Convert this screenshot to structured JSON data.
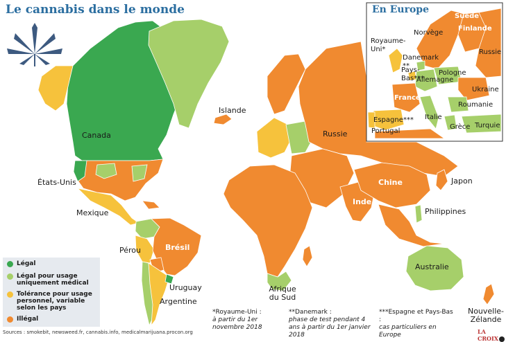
{
  "title": "Le cannabis dans le monde",
  "colors": {
    "legal": "#3aa850",
    "medical": "#a6cf6a",
    "tolerance": "#f6c23c",
    "illegal": "#f08a30",
    "water": "#ffffff"
  },
  "countries": {
    "canada": "Canada",
    "usa": "États-Unis",
    "mexique": "Mexique",
    "perou": "Pérou",
    "bresil": "Brésil",
    "uruguay": "Uruguay",
    "argentine": "Argentine",
    "islande": "Islande",
    "russie": "Russie",
    "chine": "Chine",
    "inde": "Inde",
    "japon": "Japon",
    "philippines": "Philippines",
    "australie": "Australie",
    "afrique_sud": "Afrique du Sud",
    "nz": "Nouvelle-Zélande"
  },
  "inset": {
    "title": "En Europe",
    "labels": {
      "suede": "Suède",
      "finlande": "Finlande",
      "norvege": "Norvège",
      "royaume_uni": "Royaume-Uni*",
      "danemark": "Danemark **",
      "pays_bas": "Pays-Bas***",
      "allemagne": "Allemagne",
      "pologne": "Pologne",
      "russie": "Russie",
      "ukraine": "Ukraine",
      "france": "France",
      "roumanie": "Roumanie",
      "italie": "Italie",
      "espagne": "Espagne***",
      "portugal": "Portugal",
      "grece": "Grèce",
      "turquie": "Turquie"
    }
  },
  "legend": {
    "items": [
      {
        "label": "Légal",
        "color": "#3aa850"
      },
      {
        "label": "Légal pour usage uniquement médical",
        "color": "#a6cf6a"
      },
      {
        "label": "Tolérance pour usage personnel, variable selon les pays",
        "color": "#f6c23c"
      },
      {
        "label": "Illégal",
        "color": "#f08a30"
      }
    ]
  },
  "notes": [
    {
      "title": "*Royaume-Uni :",
      "body": "à partir du 1er novembre 2018"
    },
    {
      "title": "**Danemark :",
      "body": "phase de test pendant 4 ans à partir du 1er janvier 2018"
    },
    {
      "title": "***Espagne et Pays-Bas :",
      "body": "cas particuliers en Europe"
    }
  ],
  "sources": "Sources : smokebit, newsweed.fr, cannabis.info, medicalmarijuana.procon.org",
  "logo": "LA CROIX"
}
